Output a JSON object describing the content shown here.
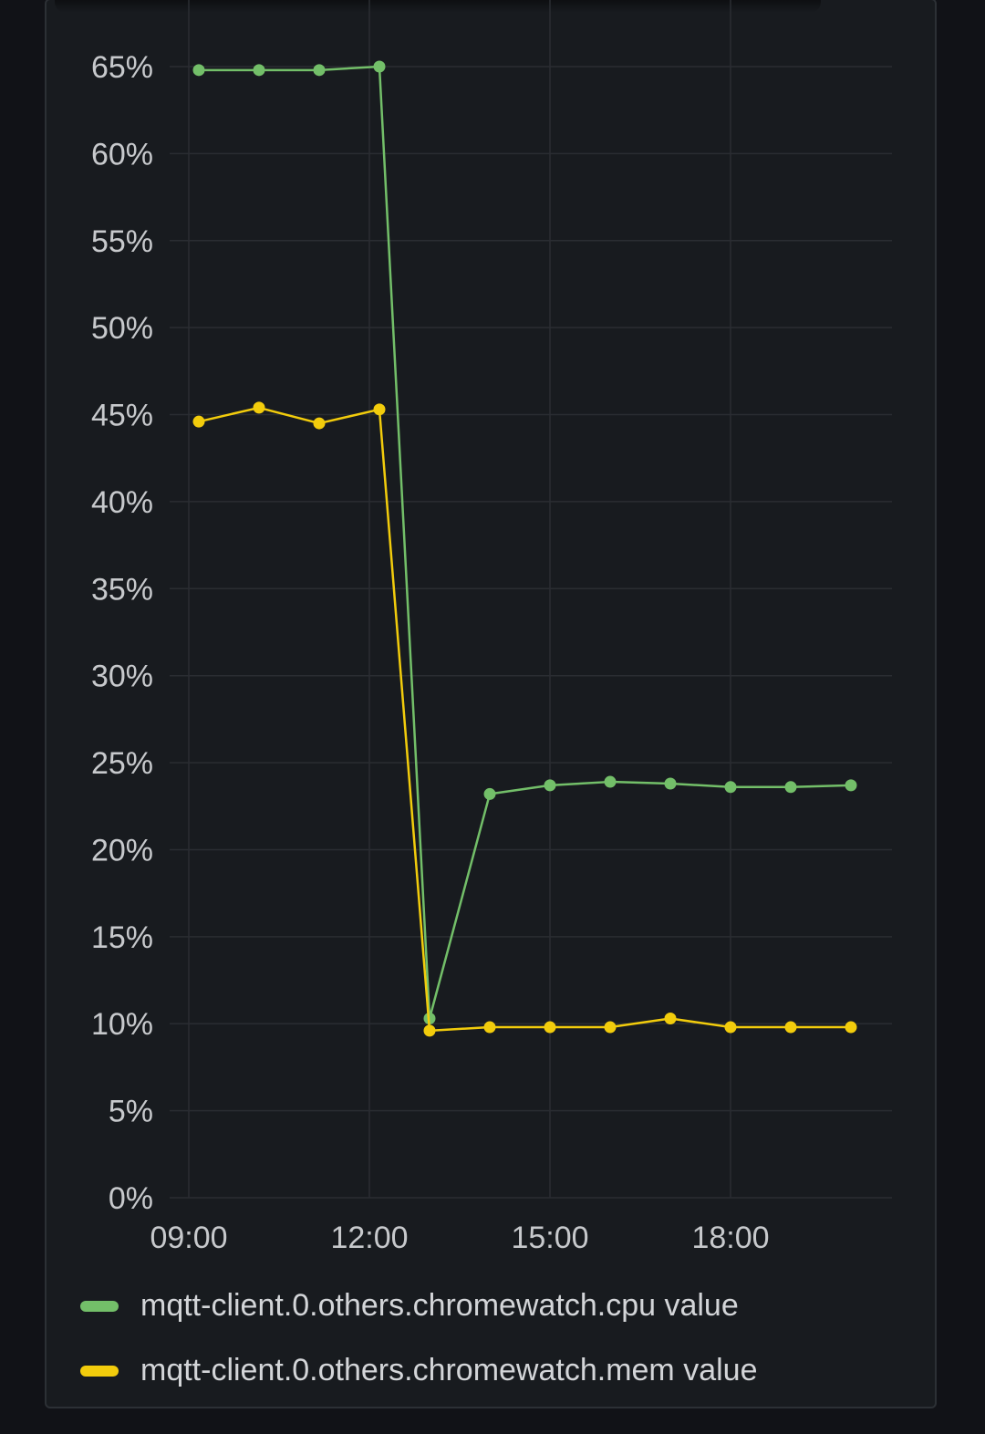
{
  "chart_data": {
    "type": "line",
    "ylim": [
      0,
      65
    ],
    "y_ticks": [
      "0%",
      "5%",
      "10%",
      "15%",
      "20%",
      "25%",
      "30%",
      "35%",
      "40%",
      "45%",
      "50%",
      "55%",
      "60%",
      "65%"
    ],
    "x_ticks": [
      "09:00",
      "12:00",
      "15:00",
      "18:00"
    ],
    "grid": true,
    "legend_position": "bottom",
    "x": [
      "09:10",
      "10:10",
      "11:10",
      "12:10",
      "13:00",
      "14:00",
      "15:00",
      "16:00",
      "17:00",
      "18:00",
      "19:00",
      "20:00"
    ],
    "series": [
      {
        "name": "mqtt-client.0.others.chromewatch.cpu value",
        "color": "#73bf69",
        "values": [
          64.8,
          64.8,
          64.8,
          65.0,
          10.3,
          23.2,
          23.7,
          23.9,
          23.8,
          23.6,
          23.6,
          23.7
        ]
      },
      {
        "name": "mqtt-client.0.others.chromewatch.mem value",
        "color": "#f2cc0c",
        "values": [
          44.6,
          45.4,
          44.5,
          45.3,
          9.6,
          9.8,
          9.8,
          9.8,
          10.3,
          9.8,
          9.8,
          9.8
        ]
      }
    ]
  }
}
